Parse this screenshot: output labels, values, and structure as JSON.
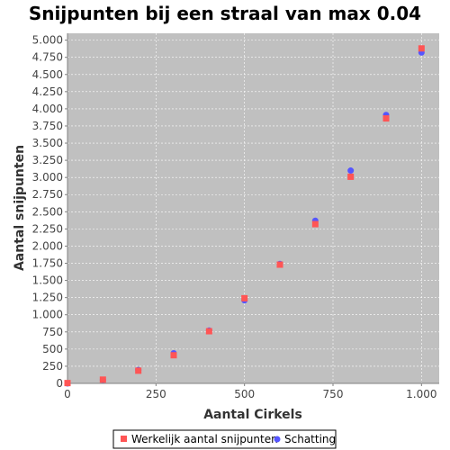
{
  "chart_data": {
    "type": "scatter",
    "title": "Snijpunten bij een straal van max 0.04",
    "xlabel": "Aantal Cirkels",
    "ylabel": "Aantal snijpunten",
    "xlim": [
      0,
      1050
    ],
    "ylim": [
      0,
      5100
    ],
    "x_ticks": [
      0,
      250,
      500,
      750,
      1000
    ],
    "x_tick_labels": [
      "0",
      "250",
      "500",
      "750",
      "1.000"
    ],
    "y_ticks": [
      0,
      250,
      500,
      750,
      1000,
      1250,
      1500,
      1750,
      2000,
      2250,
      2500,
      2750,
      3000,
      3250,
      3500,
      3750,
      4000,
      4250,
      4500,
      4750,
      5000
    ],
    "y_tick_labels": [
      "0",
      "250",
      "500",
      "750",
      "1.000",
      "1.250",
      "1.500",
      "1.750",
      "2.000",
      "2.250",
      "2.500",
      "2.750",
      "3.000",
      "3.250",
      "3.500",
      "3.750",
      "4.000",
      "4.250",
      "4.500",
      "4.750",
      "5.000"
    ],
    "grid": true,
    "legend_position": "bottom",
    "series": [
      {
        "name": "Werkelijk aantal snijpunten",
        "marker": "square",
        "color": "#ff5555",
        "x": [
          0,
          100,
          200,
          300,
          400,
          500,
          600,
          700,
          800,
          900,
          1000
        ],
        "y": [
          5,
          55,
          185,
          410,
          760,
          1240,
          1730,
          2320,
          3010,
          3860,
          4880
        ]
      },
      {
        "name": "Schatting",
        "marker": "circle",
        "color": "#5555ff",
        "x": [
          0,
          100,
          200,
          300,
          400,
          500,
          600,
          700,
          800,
          900,
          1000
        ],
        "y": [
          0,
          50,
          195,
          440,
          770,
          1210,
          1740,
          2370,
          3100,
          3910,
          4820
        ]
      }
    ]
  }
}
